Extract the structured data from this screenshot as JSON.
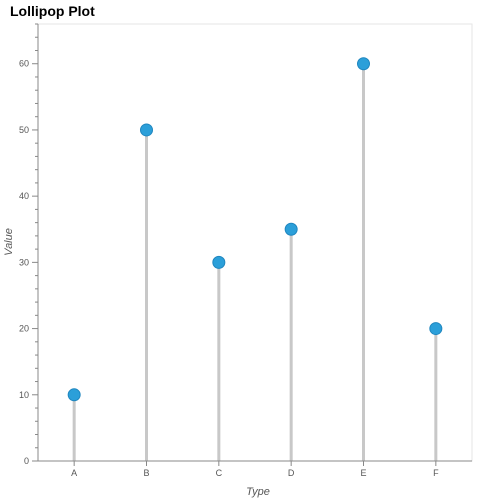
{
  "chart_data": {
    "type": "lollipop",
    "title": "Lollipop Plot",
    "xlabel": "Type",
    "ylabel": "Value",
    "categories": [
      "A",
      "B",
      "C",
      "D",
      "E",
      "F"
    ],
    "values": [
      10,
      50,
      30,
      35,
      60,
      20
    ],
    "ylim": [
      0,
      66
    ],
    "yticks": [
      0,
      10,
      20,
      30,
      40,
      50,
      60
    ],
    "grid": false,
    "colors": {
      "marker": "#2b9fd9",
      "stem": "#c8c8c8",
      "axis": "#888888"
    }
  }
}
